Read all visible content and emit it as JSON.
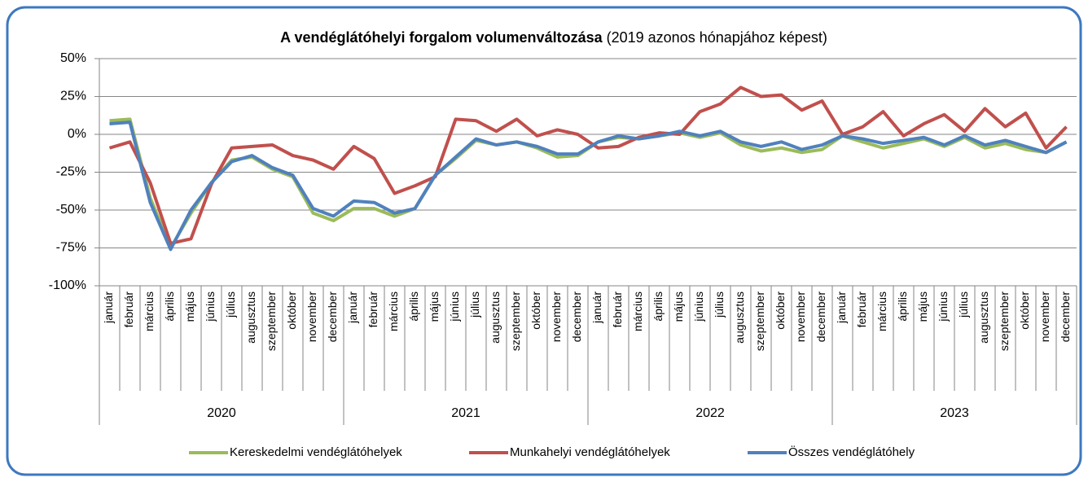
{
  "chart_data": {
    "type": "line",
    "title": "A vendéglátóhelyi forgalom volumenváltozása",
    "subtitle": "(2019 azonos hónapjához képest)",
    "categories": [
      "január",
      "február",
      "március",
      "április",
      "május",
      "június",
      "július",
      "augusztus",
      "szeptember",
      "október",
      "november",
      "december",
      "január",
      "február",
      "március",
      "április",
      "május",
      "június",
      "július",
      "augusztus",
      "szeptember",
      "október",
      "november",
      "december",
      "január",
      "február",
      "március",
      "április",
      "május",
      "június",
      "július",
      "augusztus",
      "szeptember",
      "október",
      "november",
      "december",
      "január",
      "február",
      "március",
      "április",
      "május",
      "június",
      "július",
      "augusztus",
      "szeptember",
      "október",
      "november",
      "december"
    ],
    "years": [
      "2020",
      "2021",
      "2022",
      "2023"
    ],
    "series": [
      {
        "name": "Kereskedelmi vendéglátóhelyek",
        "color": "#9bbb59",
        "values": [
          9,
          10,
          -42,
          -75,
          -52,
          -32,
          -17,
          -15,
          -23,
          -28,
          -52,
          -57,
          -49,
          -49,
          -54,
          -49,
          -27,
          -16,
          -4,
          -7,
          -5,
          -9,
          -15,
          -14,
          -5,
          -2,
          -3,
          -1,
          1,
          -2,
          1,
          -7,
          -11,
          -9,
          -12,
          -10,
          -1,
          -5,
          -9,
          -6,
          -3,
          -8,
          -2,
          -9,
          -6,
          -10,
          -12,
          -5
        ]
      },
      {
        "name": "Munkahelyi vendéglátóhelyek",
        "color": "#c0504d",
        "values": [
          -9,
          -5,
          -32,
          -72,
          -69,
          -33,
          -9,
          -8,
          -7,
          -14,
          -17,
          -23,
          -8,
          -16,
          -39,
          -34,
          -28,
          10,
          9,
          2,
          10,
          -1,
          3,
          0,
          -9,
          -8,
          -2,
          1,
          0,
          15,
          20,
          31,
          25,
          26,
          16,
          22,
          0,
          5,
          15,
          -1,
          7,
          13,
          2,
          17,
          5,
          14,
          -9,
          5
        ]
      },
      {
        "name": "Összes vendéglátóhely",
        "color": "#4f81bd",
        "values": [
          7,
          8,
          -45,
          -76,
          -50,
          -32,
          -18,
          -14,
          -22,
          -27,
          -49,
          -54,
          -44,
          -45,
          -52,
          -49,
          -27,
          -15,
          -3,
          -7,
          -5,
          -8,
          -13,
          -13,
          -5,
          -1,
          -3,
          -1,
          2,
          -1,
          2,
          -5,
          -8,
          -5,
          -10,
          -7,
          -1,
          -3,
          -6,
          -4,
          -2,
          -7,
          -1,
          -7,
          -4,
          -8,
          -12,
          -5
        ]
      }
    ],
    "ylim": [
      -100,
      50
    ],
    "yticks": [
      {
        "value": -100,
        "label": "-100%"
      },
      {
        "value": -75,
        "label": "-75%"
      },
      {
        "value": -50,
        "label": "-50%"
      },
      {
        "value": -25,
        "label": "-25%"
      },
      {
        "value": 0,
        "label": "0%"
      },
      {
        "value": 25,
        "label": "25%"
      },
      {
        "value": 50,
        "label": "50%"
      }
    ],
    "grid": true,
    "legend": "bottom"
  }
}
